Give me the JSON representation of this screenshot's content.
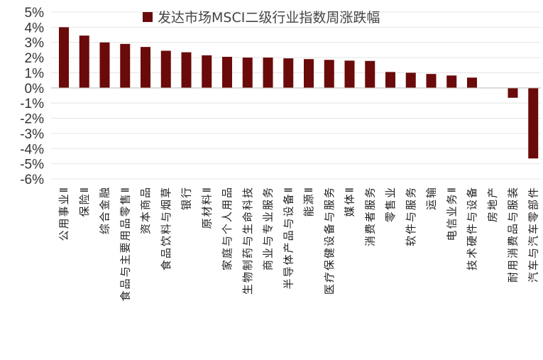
{
  "chart_data": {
    "type": "bar",
    "legend": {
      "label": "发达市场MSCI二级行业指数周涨跌幅",
      "position": "top",
      "color": "#6b0a0a"
    },
    "categories": [
      "公用事业Ⅱ",
      "保险Ⅱ",
      "综合金融",
      "食品与主要用品零售Ⅱ",
      "资本商品",
      "食品饮料与烟草",
      "银行",
      "原材料Ⅱ",
      "家庭与个人用品",
      "生物制药与生命科技",
      "商业与专业服务",
      "半导体产品与设备Ⅱ",
      "能源Ⅱ",
      "医疗保健设备与服务",
      "媒体Ⅱ",
      "消费者服务",
      "零售业",
      "软件与服务",
      "运输",
      "电信业务Ⅱ",
      "技术硬件与设备",
      "房地产",
      "耐用消费品与服装",
      "汽车与汽车零部件"
    ],
    "series": [
      {
        "name": "发达市场MSCI二级行业指数周涨跌幅",
        "color": "#6b0a0a",
        "values": [
          4.0,
          3.45,
          3.0,
          2.9,
          2.7,
          2.45,
          2.35,
          2.15,
          2.05,
          2.0,
          2.0,
          1.95,
          1.9,
          1.85,
          1.8,
          1.78,
          1.05,
          1.0,
          0.92,
          0.82,
          0.68,
          0.0,
          -0.65,
          -4.65
        ]
      }
    ],
    "y_ticks": [
      "5%",
      "4%",
      "3%",
      "2%",
      "1%",
      "0%",
      "-1%",
      "-2%",
      "-3%",
      "-4%",
      "-5%",
      "-6%"
    ],
    "ylim": [
      -6,
      5
    ],
    "grid": true
  }
}
